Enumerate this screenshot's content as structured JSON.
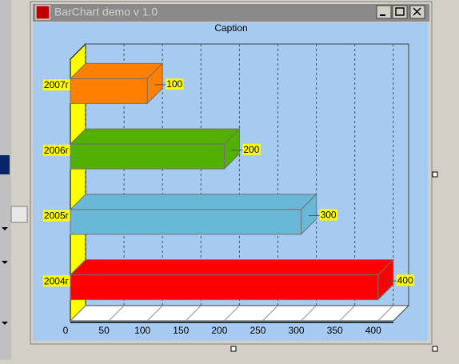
{
  "window": {
    "title": "BarChart demo v 1.0"
  },
  "chart_data": {
    "type": "bar3d-horizontal",
    "title": "Caption",
    "categories": [
      "2004г",
      "2005г",
      "2006г",
      "2007г"
    ],
    "values": [
      400,
      300,
      200,
      100
    ],
    "colors": [
      "#ff0000",
      "#6ab8d8",
      "#52b000",
      "#ff8000"
    ],
    "xlim": [
      0,
      420
    ],
    "xticks": [
      0,
      50,
      100,
      150,
      200,
      250,
      300,
      350,
      400
    ],
    "grid": true
  }
}
